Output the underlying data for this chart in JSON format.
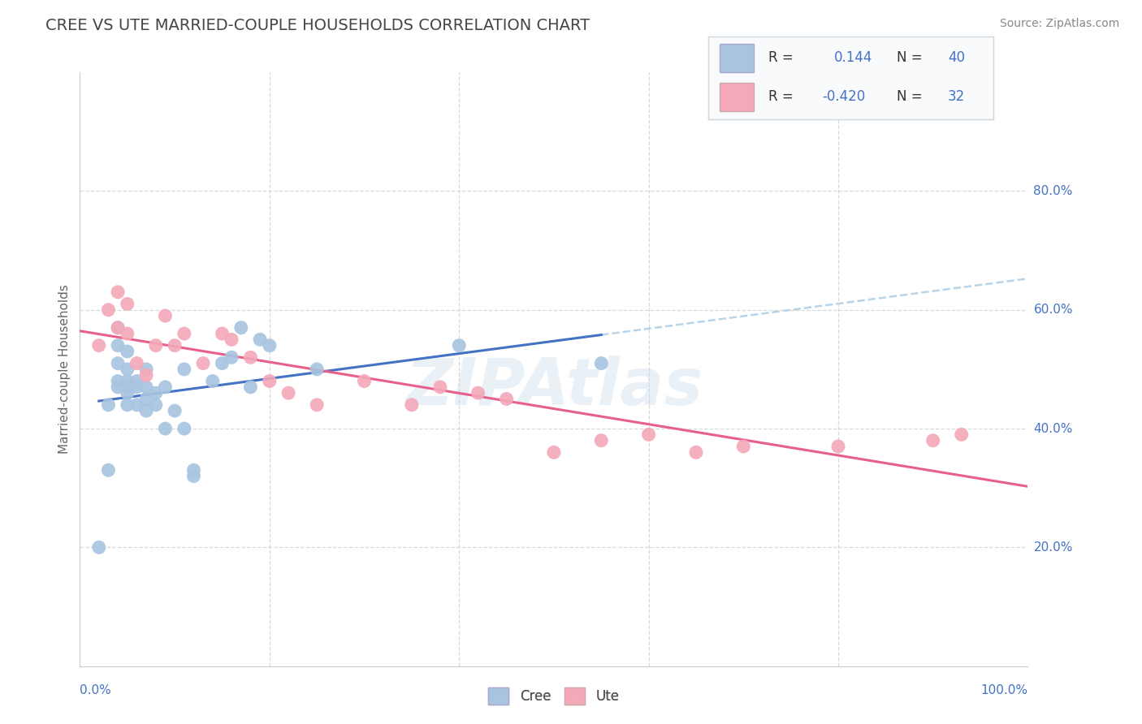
{
  "title": "CREE VS UTE MARRIED-COUPLE HOUSEHOLDS CORRELATION CHART",
  "source": "Source: ZipAtlas.com",
  "ylabel": "Married-couple Households",
  "cree_color": "#a8c4e0",
  "ute_color": "#f4a8b8",
  "cree_line_color": "#4472c4",
  "ute_line_color": "#e8608a",
  "dashed_line_color": "#b8d4e8",
  "cree_r": 0.144,
  "cree_n": 40,
  "ute_r": -0.42,
  "ute_n": 32,
  "xlim": [
    0,
    1.0
  ],
  "ylim": [
    0,
    1.0
  ],
  "xtick_positions": [
    0.0,
    1.0
  ],
  "xtick_labels": [
    "0.0%",
    "100.0%"
  ],
  "ytick_positions": [
    0.2,
    0.4,
    0.6,
    0.8
  ],
  "ytick_labels": [
    "20.0%",
    "40.0%",
    "60.0%",
    "80.0%"
  ],
  "cree_x": [
    0.02,
    0.03,
    0.03,
    0.04,
    0.04,
    0.04,
    0.04,
    0.04,
    0.05,
    0.05,
    0.05,
    0.05,
    0.05,
    0.05,
    0.06,
    0.06,
    0.06,
    0.07,
    0.07,
    0.07,
    0.07,
    0.08,
    0.08,
    0.09,
    0.09,
    0.1,
    0.11,
    0.11,
    0.12,
    0.12,
    0.14,
    0.15,
    0.16,
    0.17,
    0.18,
    0.19,
    0.2,
    0.25,
    0.4,
    0.55
  ],
  "cree_y": [
    0.2,
    0.33,
    0.44,
    0.47,
    0.48,
    0.51,
    0.54,
    0.57,
    0.44,
    0.46,
    0.47,
    0.48,
    0.5,
    0.53,
    0.44,
    0.47,
    0.48,
    0.43,
    0.45,
    0.47,
    0.5,
    0.44,
    0.46,
    0.4,
    0.47,
    0.43,
    0.4,
    0.5,
    0.32,
    0.33,
    0.48,
    0.51,
    0.52,
    0.57,
    0.47,
    0.55,
    0.54,
    0.5,
    0.54,
    0.51
  ],
  "ute_x": [
    0.02,
    0.03,
    0.04,
    0.04,
    0.05,
    0.05,
    0.06,
    0.07,
    0.08,
    0.09,
    0.1,
    0.11,
    0.13,
    0.15,
    0.16,
    0.18,
    0.2,
    0.22,
    0.25,
    0.3,
    0.35,
    0.38,
    0.42,
    0.45,
    0.5,
    0.55,
    0.6,
    0.65,
    0.7,
    0.8,
    0.9,
    0.93
  ],
  "ute_y": [
    0.54,
    0.6,
    0.57,
    0.63,
    0.56,
    0.61,
    0.51,
    0.49,
    0.54,
    0.59,
    0.54,
    0.56,
    0.51,
    0.56,
    0.55,
    0.52,
    0.48,
    0.46,
    0.44,
    0.48,
    0.44,
    0.47,
    0.46,
    0.45,
    0.36,
    0.38,
    0.39,
    0.36,
    0.37,
    0.37,
    0.38,
    0.39
  ],
  "background_color": "#ffffff",
  "grid_color": "#d8d8d8",
  "title_color": "#444444",
  "axis_label_color": "#4472c4"
}
